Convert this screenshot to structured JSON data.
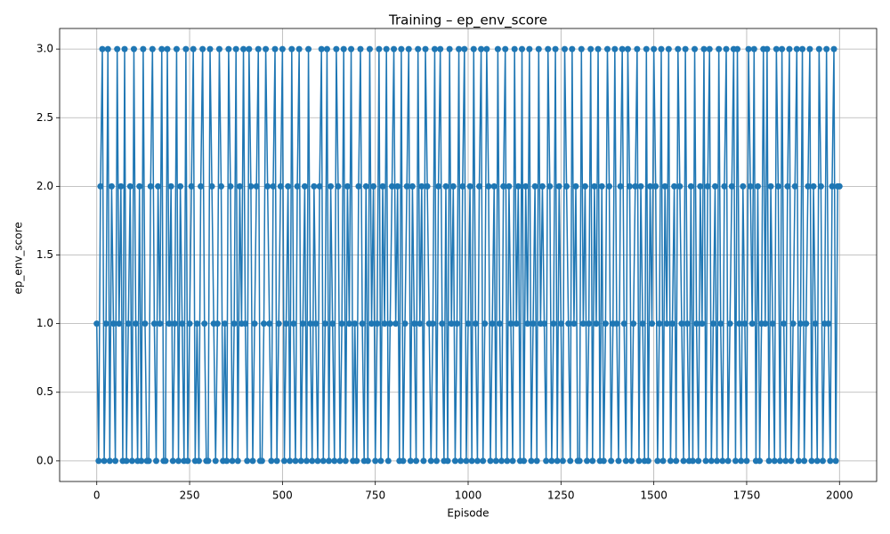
{
  "chart_data": {
    "type": "line",
    "title": "Training – ep_env_score",
    "xlabel": "Episode",
    "ylabel": "ep_env_score",
    "color": "#1f77b4",
    "grid": true,
    "xlim": [
      -100,
      2100
    ],
    "ylim": [
      -0.15,
      3.15
    ],
    "xticks": [
      0,
      250,
      500,
      750,
      1000,
      1250,
      1500,
      1750,
      2000
    ],
    "yticks": [
      {
        "value": 0,
        "label": "0.0"
      },
      {
        "value": 0.5,
        "label": "0.5"
      },
      {
        "value": 1,
        "label": "1.0"
      },
      {
        "value": 1.5,
        "label": "1.5"
      },
      {
        "value": 2,
        "label": "2.0"
      },
      {
        "value": 2.5,
        "label": "2.5"
      },
      {
        "value": 3,
        "label": "3.0"
      }
    ],
    "x": [
      0,
      5,
      10,
      15,
      20,
      25,
      30,
      35,
      40,
      45,
      50,
      55,
      60,
      65,
      70,
      75,
      80,
      85,
      90,
      95,
      100,
      105,
      110,
      115,
      120,
      125,
      130,
      135,
      140,
      145,
      150,
      155,
      160,
      165,
      170,
      175,
      180,
      185,
      190,
      195,
      200,
      205,
      210,
      215,
      220,
      225,
      230,
      235,
      240,
      245,
      250,
      255,
      260,
      265,
      270,
      275,
      280,
      285,
      290,
      295,
      300,
      305,
      310,
      315,
      320,
      325,
      330,
      335,
      340,
      345,
      350,
      355,
      360,
      365,
      370,
      375,
      380,
      385,
      390,
      395,
      400,
      405,
      410,
      415,
      420,
      425,
      430,
      435,
      440,
      445,
      450,
      455,
      460,
      465,
      470,
      475,
      480,
      485,
      490,
      495,
      500,
      505,
      510,
      515,
      520,
      525,
      530,
      535,
      540,
      545,
      550,
      555,
      560,
      565,
      570,
      575,
      580,
      585,
      590,
      595,
      600,
      605,
      610,
      615,
      620,
      625,
      630,
      635,
      640,
      645,
      650,
      655,
      660,
      665,
      670,
      675,
      680,
      685,
      690,
      695,
      700,
      705,
      710,
      715,
      720,
      725,
      730,
      735,
      740,
      745,
      750,
      755,
      760,
      765,
      770,
      775,
      780,
      785,
      790,
      795,
      800,
      805,
      810,
      815,
      820,
      825,
      830,
      835,
      840,
      845,
      850,
      855,
      860,
      865,
      870,
      875,
      880,
      885,
      890,
      895,
      900,
      905,
      910,
      915,
      920,
      925,
      930,
      935,
      940,
      945,
      950,
      955,
      960,
      965,
      970,
      975,
      980,
      985,
      990,
      995,
      1000,
      1005,
      1010,
      1015,
      1020,
      1025,
      1030,
      1035,
      1040,
      1045,
      1050,
      1055,
      1060,
      1065,
      1070,
      1075,
      1080,
      1085,
      1090,
      1095,
      1100,
      1105,
      1110,
      1115,
      1120,
      1125,
      1130,
      1135,
      1140,
      1145,
      1150,
      1155,
      1160,
      1165,
      1170,
      1175,
      1180,
      1185,
      1190,
      1195,
      1200,
      1205,
      1210,
      1215,
      1220,
      1225,
      1230,
      1235,
      1240,
      1245,
      1250,
      1255,
      1260,
      1265,
      1270,
      1275,
      1280,
      1285,
      1290,
      1295,
      1300,
      1305,
      1310,
      1315,
      1320,
      1325,
      1330,
      1335,
      1340,
      1345,
      1350,
      1355,
      1360,
      1365,
      1370,
      1375,
      1380,
      1385,
      1390,
      1395,
      1400,
      1405,
      1410,
      1415,
      1420,
      1425,
      1430,
      1435,
      1440,
      1445,
      1450,
      1455,
      1460,
      1465,
      1470,
      1475,
      1480,
      1485,
      1490,
      1495,
      1500,
      1505,
      1510,
      1515,
      1520,
      1525,
      1530,
      1535,
      1540,
      1545,
      1550,
      1555,
      1560,
      1565,
      1570,
      1575,
      1580,
      1585,
      1590,
      1595,
      1600,
      1605,
      1610,
      1615,
      1620,
      1625,
      1630,
      1635,
      1640,
      1645,
      1650,
      1655,
      1660,
      1665,
      1670,
      1675,
      1680,
      1685,
      1690,
      1695,
      1700,
      1705,
      1710,
      1715,
      1720,
      1725,
      1730,
      1735,
      1740,
      1745,
      1750,
      1755,
      1760,
      1765,
      1770,
      1775,
      1780,
      1785,
      1790,
      1795,
      1800,
      1805,
      1810,
      1815,
      1820,
      1825,
      1830,
      1835,
      1840,
      1845,
      1850,
      1855,
      1860,
      1865,
      1870,
      1875,
      1880,
      1885,
      1890,
      1895,
      1900,
      1905,
      1910,
      1915,
      1920,
      1925,
      1930,
      1935,
      1940,
      1945,
      1950,
      1955,
      1960,
      1965,
      1970,
      1975,
      1980,
      1985,
      1990,
      1995,
      2000
    ],
    "values": [
      1,
      0,
      2,
      3,
      0,
      1,
      3,
      0,
      2,
      1,
      0,
      3,
      1,
      2,
      0,
      3,
      0,
      1,
      2,
      0,
      3,
      1,
      0,
      2,
      0,
      3,
      1,
      0,
      0,
      2,
      3,
      1,
      0,
      2,
      1,
      3,
      0,
      0,
      3,
      1,
      2,
      0,
      1,
      3,
      0,
      2,
      1,
      0,
      3,
      0,
      1,
      2,
      3,
      0,
      1,
      0,
      2,
      3,
      1,
      0,
      0,
      3,
      2,
      1,
      0,
      1,
      3,
      2,
      0,
      1,
      0,
      3,
      2,
      0,
      1,
      3,
      0,
      2,
      1,
      3,
      1,
      0,
      3,
      2,
      0,
      1,
      2,
      3,
      0,
      0,
      1,
      3,
      2,
      1,
      0,
      2,
      3,
      0,
      1,
      2,
      3,
      0,
      1,
      2,
      0,
      3,
      1,
      0,
      2,
      3,
      0,
      1,
      2,
      0,
      3,
      1,
      0,
      2,
      1,
      0,
      2,
      3,
      0,
      1,
      3,
      0,
      2,
      1,
      0,
      3,
      2,
      0,
      1,
      3,
      0,
      2,
      1,
      3,
      0,
      1,
      0,
      2,
      3,
      1,
      0,
      2,
      0,
      3,
      1,
      2,
      0,
      1,
      3,
      0,
      2,
      1,
      3,
      0,
      1,
      2,
      3,
      1,
      2,
      0,
      3,
      0,
      1,
      2,
      3,
      0,
      2,
      1,
      0,
      3,
      1,
      2,
      0,
      3,
      2,
      1,
      0,
      1,
      3,
      0,
      2,
      3,
      1,
      0,
      2,
      0,
      3,
      1,
      2,
      0,
      1,
      3,
      0,
      2,
      3,
      0,
      1,
      2,
      0,
      3,
      1,
      0,
      2,
      3,
      0,
      1,
      3,
      2,
      0,
      1,
      2,
      0,
      3,
      1,
      0,
      2,
      3,
      0,
      2,
      1,
      0,
      3,
      1,
      2,
      0,
      3,
      0,
      2,
      1,
      3,
      0,
      1,
      2,
      0,
      3,
      1,
      2,
      1,
      0,
      3,
      2,
      0,
      1,
      3,
      0,
      2,
      1,
      0,
      3,
      2,
      1,
      0,
      3,
      1,
      2,
      0,
      0,
      3,
      1,
      2,
      0,
      1,
      3,
      0,
      2,
      1,
      3,
      0,
      2,
      0,
      1,
      3,
      2,
      0,
      1,
      3,
      1,
      0,
      2,
      3,
      1,
      0,
      3,
      2,
      0,
      1,
      2,
      3,
      0,
      2,
      1,
      0,
      3,
      0,
      2,
      1,
      3,
      2,
      0,
      1,
      3,
      0,
      2,
      1,
      3,
      0,
      1,
      2,
      0,
      3,
      2,
      1,
      0,
      3,
      1,
      0,
      2,
      0,
      3,
      1,
      0,
      2,
      1,
      3,
      0,
      2,
      3,
      0,
      1,
      2,
      0,
      3,
      1,
      0,
      2,
      3,
      0,
      1,
      2,
      3,
      0,
      3,
      1,
      0,
      2,
      1,
      0,
      3,
      2,
      1,
      3,
      0,
      2,
      0,
      1,
      3,
      1,
      3,
      0,
      2,
      1,
      0,
      3,
      2,
      0,
      3,
      1,
      0,
      2,
      3,
      0,
      1,
      2,
      3,
      0,
      1,
      3,
      0,
      1,
      2,
      3,
      0,
      2,
      1,
      0,
      3,
      2,
      0,
      1,
      3,
      1,
      0,
      2,
      3,
      0,
      2,
      2
    ]
  }
}
